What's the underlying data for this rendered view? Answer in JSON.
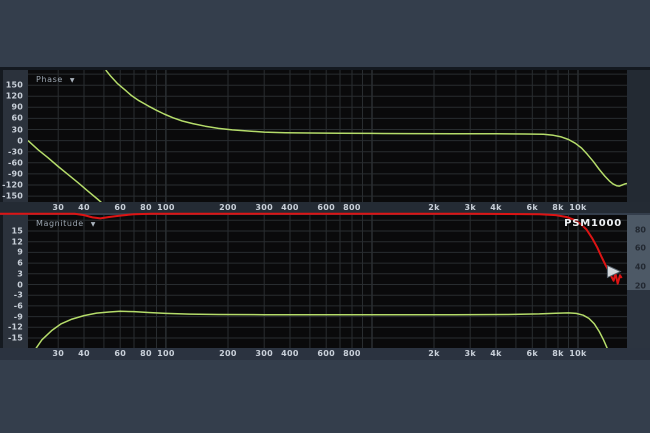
{
  "device_label": "PSM1000",
  "icons": {
    "dropdown": "▼",
    "gain_marker": "right-pointing-triangle"
  },
  "colors": {
    "panel": "#343e4c",
    "plot_bg": "#0a0a0b",
    "grid_minor": "#292d30",
    "grid_decade": "#3a4044",
    "trace_green": "#b5dc6a",
    "trace_red": "#dd1414",
    "right_scale_bg": "#4d5966",
    "marker_fill": "#d2d7db",
    "tick_text": "#c9d0d9"
  },
  "chart_data": [
    {
      "type": "line",
      "title": "Phase",
      "y_unit": "degrees",
      "x_scale": "log",
      "x_range_hz": [
        21.4,
        17300
      ],
      "ylim": [
        -166,
        191
      ],
      "grid": true,
      "yticks": [
        150,
        120,
        90,
        60,
        30,
        0,
        -30,
        -60,
        -90,
        -120,
        -150
      ],
      "xticks": [
        [
          30,
          "30"
        ],
        [
          40,
          "40"
        ],
        [
          60,
          "60"
        ],
        [
          80,
          "80"
        ],
        [
          100,
          "100"
        ],
        [
          200,
          "200"
        ],
        [
          300,
          "300"
        ],
        [
          400,
          "400"
        ],
        [
          600,
          "600"
        ],
        [
          800,
          "800"
        ],
        [
          2000,
          "2k"
        ],
        [
          3000,
          "3k"
        ],
        [
          4000,
          "4k"
        ],
        [
          6000,
          "6k"
        ],
        [
          8000,
          "8k"
        ],
        [
          10000,
          "10k"
        ]
      ],
      "series": [
        {
          "name": "phase-response",
          "color": "#b5dc6a",
          "segments": [
            [
              [
                21.4,
                0
              ],
              [
                24,
                -25
              ],
              [
                26.7,
                -46
              ],
              [
                30,
                -70
              ],
              [
                33.4,
                -91
              ],
              [
                37.5,
                -114
              ],
              [
                41.7,
                -136
              ],
              [
                46.5,
                -158
              ],
              [
                51.7,
                -180
              ],
              [
                53.5,
                -190
              ]
            ],
            [
              [
                51,
                191
              ],
              [
                54,
                174
              ],
              [
                58,
                155
              ],
              [
                63,
                138
              ],
              [
                68,
                122
              ],
              [
                74,
                108
              ],
              [
                82,
                94
              ],
              [
                90,
                82
              ],
              [
                98,
                72
              ],
              [
                108,
                62
              ],
              [
                120,
                53
              ],
              [
                135,
                46
              ],
              [
                155,
                39
              ],
              [
                180,
                33
              ],
              [
                210,
                29
              ],
              [
                250,
                26
              ],
              [
                300,
                23
              ],
              [
                380,
                21.5
              ],
              [
                500,
                20.5
              ],
              [
                700,
                20
              ],
              [
                1000,
                19.5
              ],
              [
                1500,
                19
              ],
              [
                2500,
                18.5
              ],
              [
                4000,
                18.5
              ],
              [
                5500,
                18
              ],
              [
                6800,
                17
              ],
              [
                7600,
                14.5
              ],
              [
                8300,
                10
              ],
              [
                9000,
                3
              ],
              [
                9700,
                -7
              ],
              [
                10400,
                -20
              ],
              [
                11100,
                -37
              ],
              [
                11900,
                -57
              ],
              [
                12700,
                -78
              ],
              [
                13500,
                -96
              ],
              [
                14200,
                -109
              ],
              [
                14800,
                -117
              ],
              [
                15400,
                -122
              ],
              [
                15900,
                -123
              ],
              [
                16400,
                -120
              ],
              [
                16900,
                -117
              ],
              [
                17300,
                -116
              ]
            ]
          ]
        }
      ]
    },
    {
      "type": "line",
      "title": "Magnitude",
      "y_unit": "dB",
      "x_scale": "log",
      "x_range_hz": [
        21.4,
        17300
      ],
      "ylim": [
        -17.8,
        19.5
      ],
      "grid": true,
      "yticks": [
        15,
        12,
        9,
        6,
        3,
        0,
        -3,
        -6,
        -9,
        -12,
        -15
      ],
      "xticks": [
        [
          30,
          "30"
        ],
        [
          40,
          "40"
        ],
        [
          60,
          "60"
        ],
        [
          80,
          "80"
        ],
        [
          100,
          "100"
        ],
        [
          200,
          "200"
        ],
        [
          300,
          "300"
        ],
        [
          400,
          "400"
        ],
        [
          600,
          "600"
        ],
        [
          800,
          "800"
        ],
        [
          2000,
          "2k"
        ],
        [
          3000,
          "3k"
        ],
        [
          4000,
          "4k"
        ],
        [
          6000,
          "6k"
        ],
        [
          8000,
          "8k"
        ],
        [
          10000,
          "10k"
        ]
      ],
      "right_axis": {
        "ylim": [
          -47,
          95.6
        ],
        "ticks": [
          [
            80,
            "80"
          ],
          [
            60,
            "60"
          ],
          [
            40,
            "40"
          ],
          [
            20,
            "20"
          ]
        ]
      },
      "series": [
        {
          "name": "magnitude-response",
          "color": "#b5dc6a",
          "segments": [
            [
              [
                23,
                -18.5
              ],
              [
                25,
                -15.5
              ],
              [
                28,
                -12.8
              ],
              [
                31,
                -11
              ],
              [
                35,
                -9.7
              ],
              [
                40,
                -8.7
              ],
              [
                46,
                -8.0
              ],
              [
                53,
                -7.7
              ],
              [
                60,
                -7.5
              ],
              [
                70,
                -7.6
              ],
              [
                82,
                -7.85
              ],
              [
                100,
                -8.1
              ],
              [
                130,
                -8.3
              ],
              [
                180,
                -8.4
              ],
              [
                300,
                -8.45
              ],
              [
                600,
                -8.45
              ],
              [
                1200,
                -8.45
              ],
              [
                2500,
                -8.45
              ],
              [
                4500,
                -8.4
              ],
              [
                6500,
                -8.25
              ],
              [
                7800,
                -8.05
              ],
              [
                9000,
                -7.95
              ],
              [
                9800,
                -8.1
              ],
              [
                10600,
                -8.6
              ],
              [
                11300,
                -9.5
              ],
              [
                12000,
                -11
              ],
              [
                12700,
                -13.2
              ],
              [
                13300,
                -15.5
              ],
              [
                13900,
                -18
              ],
              [
                14300,
                -20
              ]
            ]
          ]
        },
        {
          "name": "rf-spectrum-trace",
          "color": "#dd1414",
          "axis": "right",
          "segments": [
            [
              [
                15.6,
                97
              ],
              [
                36,
                97
              ],
              [
                40,
                95.5
              ],
              [
                44,
                93
              ],
              [
                48,
                92
              ],
              [
                53,
                93.5
              ],
              [
                60,
                95
              ],
              [
                70,
                96.5
              ],
              [
                85,
                97
              ],
              [
                300,
                97
              ],
              [
                3000,
                97
              ],
              [
                6500,
                96.5
              ],
              [
                7800,
                95.5
              ],
              [
                8800,
                93.5
              ],
              [
                9600,
                90.5
              ],
              [
                10300,
                86
              ],
              [
                11000,
                80
              ],
              [
                11700,
                71
              ],
              [
                12400,
                61
              ],
              [
                13000,
                51
              ],
              [
                13600,
                42
              ],
              [
                14100,
                36
              ],
              [
                14500,
                30
              ],
              [
                14900,
                25
              ],
              [
                15200,
                33
              ],
              [
                15600,
                22
              ],
              [
                16000,
                31
              ],
              [
                16300,
                28
              ]
            ]
          ]
        }
      ],
      "marker": {
        "name": "gain-marker",
        "f": 13900,
        "v": 35,
        "label": "PSM1000"
      }
    }
  ]
}
